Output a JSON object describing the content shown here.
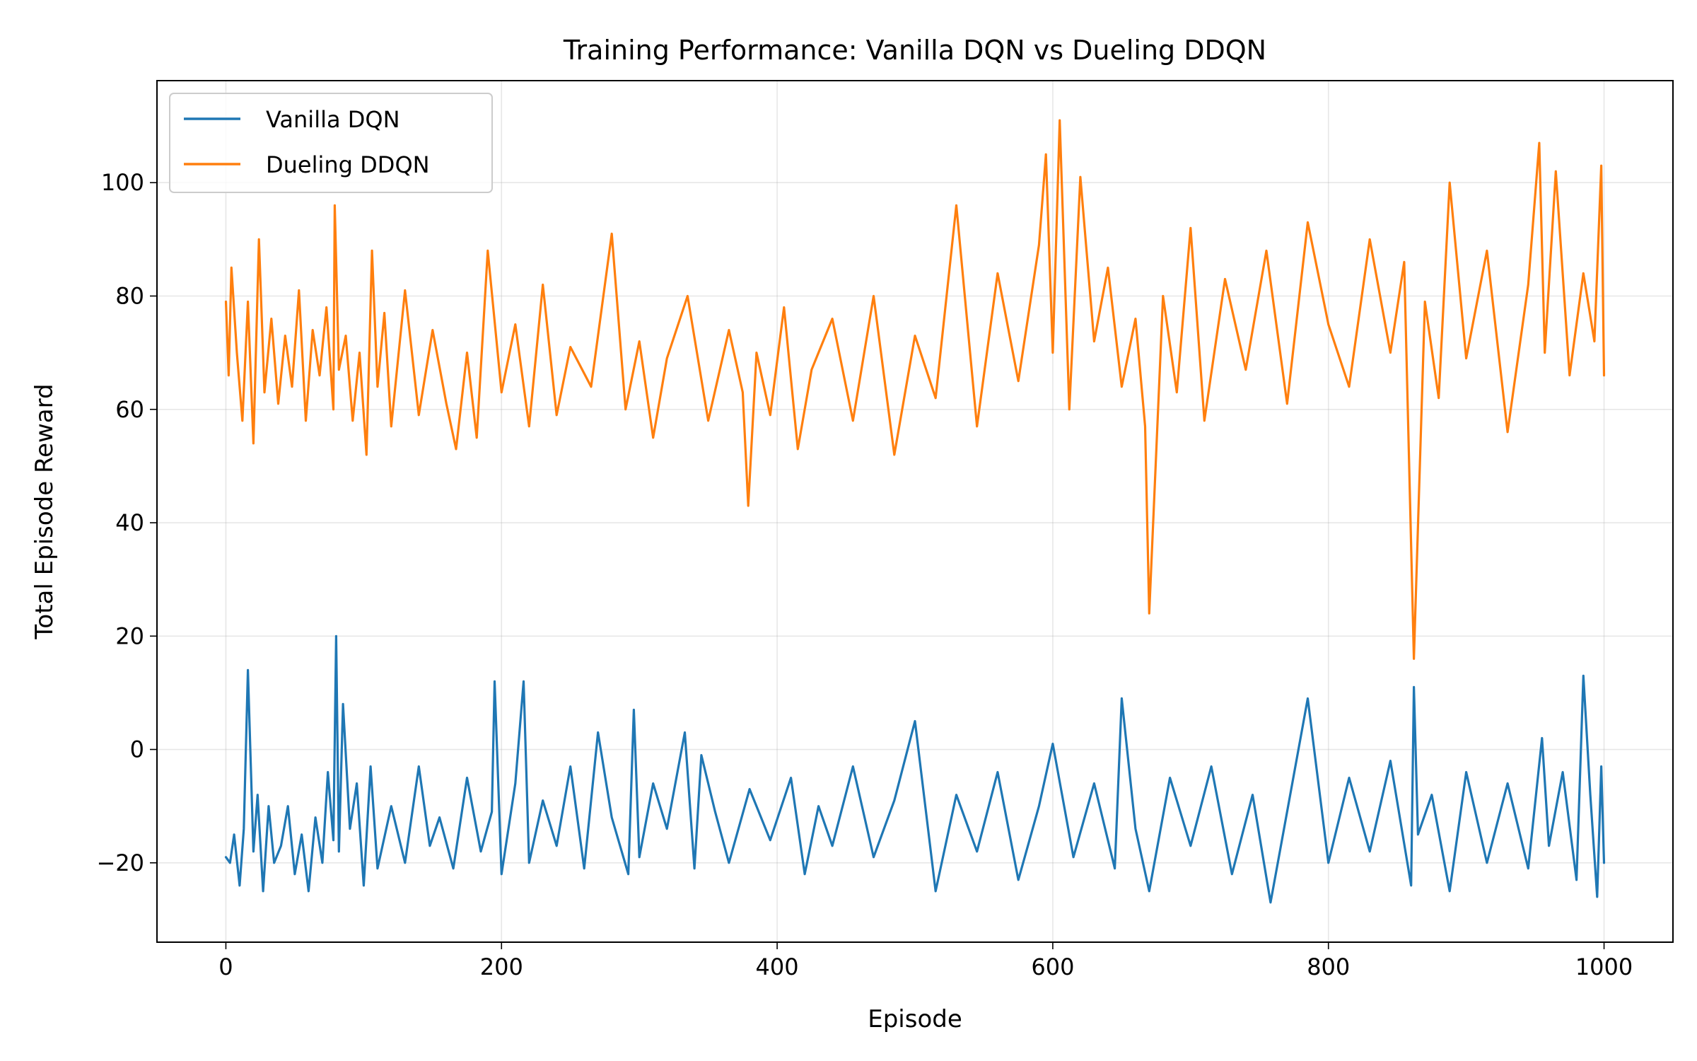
{
  "chart_data": {
    "type": "line",
    "title": "Training Performance: Vanilla DQN vs Dueling DDQN",
    "xlabel": "Episode",
    "ylabel": "Total Episode Reward",
    "xlim": [
      -50,
      1050
    ],
    "ylim": [
      -34,
      118
    ],
    "xticks": [
      0,
      200,
      400,
      600,
      800,
      1000
    ],
    "xtick_labels": [
      "0",
      "200",
      "400",
      "600",
      "800",
      "1000"
    ],
    "yticks": [
      -20,
      0,
      20,
      40,
      60,
      80,
      100
    ],
    "ytick_labels": [
      "−20",
      "0",
      "20",
      "40",
      "60",
      "80",
      "100"
    ],
    "grid": true,
    "legend_position": "top-left",
    "series": [
      {
        "name": "Vanilla DQN",
        "color": "#1f77b4",
        "x": [
          0,
          3,
          6,
          10,
          13,
          16,
          20,
          23,
          27,
          31,
          35,
          40,
          45,
          50,
          55,
          60,
          65,
          70,
          74,
          78,
          80,
          82,
          85,
          90,
          95,
          100,
          105,
          110,
          120,
          130,
          140,
          148,
          155,
          165,
          175,
          185,
          193,
          195,
          200,
          210,
          216,
          220,
          230,
          240,
          250,
          260,
          270,
          280,
          292,
          296,
          300,
          310,
          320,
          333,
          340,
          345,
          355,
          365,
          380,
          395,
          410,
          420,
          430,
          440,
          455,
          470,
          485,
          500,
          515,
          530,
          545,
          560,
          575,
          590,
          600,
          615,
          630,
          645,
          650,
          660,
          670,
          685,
          700,
          715,
          730,
          745,
          758,
          770,
          785,
          800,
          815,
          830,
          845,
          860,
          862,
          865,
          875,
          888,
          900,
          915,
          930,
          945,
          955,
          960,
          970,
          980,
          985,
          990,
          995,
          998,
          1000
        ],
        "values": [
          -19,
          -20,
          -15,
          -24,
          -14,
          14,
          -18,
          -8,
          -25,
          -10,
          -20,
          -17,
          -10,
          -22,
          -15,
          -25,
          -12,
          -20,
          -4,
          -16,
          20,
          -18,
          8,
          -14,
          -6,
          -24,
          -3,
          -21,
          -10,
          -20,
          -3,
          -17,
          -12,
          -21,
          -5,
          -18,
          -11,
          12,
          -22,
          -6,
          12,
          -20,
          -9,
          -17,
          -3,
          -21,
          3,
          -12,
          -22,
          7,
          -19,
          -6,
          -14,
          3,
          -21,
          -1,
          -11,
          -20,
          -7,
          -16,
          -5,
          -22,
          -10,
          -17,
          -3,
          -19,
          -9,
          5,
          -25,
          -8,
          -18,
          -4,
          -23,
          -10,
          1,
          -19,
          -6,
          -21,
          9,
          -14,
          -25,
          -5,
          -17,
          -3,
          -22,
          -8,
          -27,
          -11,
          9,
          -20,
          -5,
          -18,
          -2,
          -24,
          11,
          -15,
          -8,
          -25,
          -4,
          -20,
          -6,
          -21,
          2,
          -17,
          -4,
          -23,
          13,
          -8,
          -26,
          -3,
          -20
        ]
      },
      {
        "name": "Dueling DDQN",
        "color": "#ff7f0e",
        "x": [
          0,
          2,
          4,
          8,
          12,
          16,
          20,
          24,
          28,
          33,
          38,
          43,
          48,
          53,
          58,
          63,
          68,
          73,
          78,
          79,
          82,
          87,
          92,
          97,
          102,
          106,
          110,
          115,
          120,
          130,
          140,
          150,
          160,
          167,
          175,
          182,
          190,
          200,
          210,
          220,
          230,
          240,
          250,
          265,
          280,
          290,
          300,
          310,
          320,
          335,
          350,
          365,
          375,
          379,
          385,
          395,
          405,
          415,
          425,
          440,
          455,
          470,
          485,
          500,
          515,
          530,
          545,
          560,
          575,
          590,
          595,
          600,
          605,
          612,
          620,
          630,
          640,
          650,
          660,
          667,
          670,
          680,
          690,
          700,
          710,
          725,
          740,
          755,
          770,
          785,
          800,
          815,
          830,
          845,
          855,
          862,
          870,
          880,
          888,
          900,
          915,
          930,
          945,
          953,
          957,
          965,
          975,
          985,
          993,
          998,
          1000
        ],
        "values": [
          79,
          66,
          85,
          70,
          58,
          79,
          54,
          90,
          63,
          76,
          61,
          73,
          64,
          81,
          58,
          74,
          66,
          78,
          60,
          96,
          67,
          73,
          58,
          70,
          52,
          88,
          64,
          77,
          57,
          81,
          59,
          74,
          61,
          53,
          70,
          55,
          88,
          63,
          75,
          57,
          82,
          59,
          71,
          64,
          91,
          60,
          72,
          55,
          69,
          80,
          58,
          74,
          63,
          43,
          70,
          59,
          78,
          53,
          67,
          76,
          58,
          80,
          52,
          73,
          62,
          96,
          57,
          84,
          65,
          89,
          105,
          70,
          111,
          60,
          101,
          72,
          85,
          64,
          76,
          57,
          24,
          80,
          63,
          92,
          58,
          83,
          67,
          88,
          61,
          93,
          75,
          64,
          90,
          70,
          86,
          16,
          79,
          62,
          100,
          69,
          88,
          56,
          82,
          107,
          70,
          102,
          66,
          84,
          72,
          103,
          66
        ]
      }
    ]
  }
}
